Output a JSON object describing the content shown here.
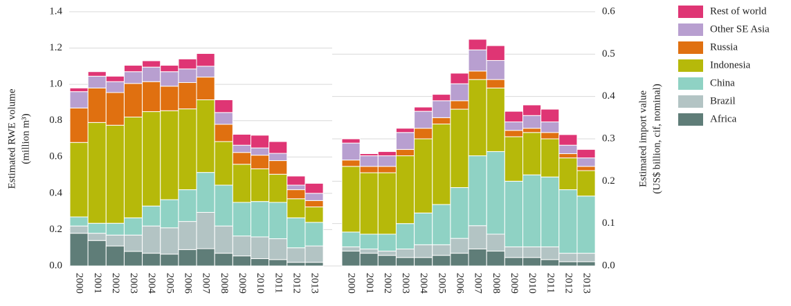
{
  "chart_data": {
    "type": "stacked-bar",
    "ylabel": [
      "Estimated RWE volume",
      "(million m³)"
    ],
    "y2label": [
      "Estimated import value",
      "(US$ billion, cif, nominal)"
    ],
    "categories": [
      "2000",
      "2001",
      "2002",
      "2003",
      "2004",
      "2005",
      "2006",
      "2007",
      "2008",
      "2009",
      "2010",
      "2011",
      "2012",
      "2013"
    ],
    "ylim": [
      0,
      1.4
    ],
    "yticks": [
      {
        "value": 0,
        "label": "0.0"
      },
      0.2,
      0.4,
      0.6,
      0.8,
      {
        "value": 1,
        "label": "1.0"
      },
      1.2,
      1.4
    ],
    "y2lim": [
      0,
      0.6
    ],
    "y2ticks": [
      {
        "value": 0,
        "label": "0.0"
      },
      0.1,
      0.2,
      0.3,
      0.4,
      0.5,
      0.6
    ],
    "grid": true,
    "series": [
      {
        "name": "Africa",
        "color": "#5f7d78",
        "values": [
          0.18,
          0.14,
          0.11,
          0.08,
          0.07,
          0.065,
          0.09,
          0.095,
          0.07,
          0.055,
          0.04,
          0.035,
          0.02,
          0.02
        ],
        "y2_values": [
          0.035,
          0.03,
          0.025,
          0.02,
          0.02,
          0.025,
          0.03,
          0.04,
          0.035,
          0.02,
          0.02,
          0.015,
          0.01,
          0.01
        ]
      },
      {
        "name": "Brazil",
        "color": "#b3c4c4",
        "values": [
          0.04,
          0.04,
          0.06,
          0.09,
          0.15,
          0.145,
          0.155,
          0.2,
          0.15,
          0.11,
          0.12,
          0.115,
          0.08,
          0.09
        ],
        "y2_values": [
          0.01,
          0.01,
          0.01,
          0.02,
          0.03,
          0.025,
          0.035,
          0.055,
          0.04,
          0.025,
          0.025,
          0.03,
          0.02,
          0.02
        ]
      },
      {
        "name": "China",
        "color": "#8fd2c4",
        "values": [
          0.05,
          0.055,
          0.065,
          0.095,
          0.11,
          0.155,
          0.175,
          0.22,
          0.225,
          0.185,
          0.195,
          0.2,
          0.165,
          0.13
        ],
        "y2_values": [
          0.035,
          0.035,
          0.04,
          0.06,
          0.075,
          0.095,
          0.12,
          0.165,
          0.195,
          0.155,
          0.17,
          0.165,
          0.15,
          0.135
        ]
      },
      {
        "name": "Indonesia",
        "color": "#b6b90a",
        "values": [
          0.41,
          0.555,
          0.54,
          0.555,
          0.52,
          0.49,
          0.445,
          0.4,
          0.24,
          0.21,
          0.18,
          0.155,
          0.105,
          0.085
        ],
        "y2_values": [
          0.155,
          0.145,
          0.145,
          0.16,
          0.175,
          0.19,
          0.185,
          0.18,
          0.15,
          0.105,
          0.1,
          0.09,
          0.075,
          0.06
        ]
      },
      {
        "name": "Russia",
        "color": "#e07010",
        "values": [
          0.19,
          0.19,
          0.18,
          0.185,
          0.165,
          0.135,
          0.145,
          0.125,
          0.095,
          0.065,
          0.075,
          0.075,
          0.05,
          0.035
        ],
        "y2_values": [
          0.015,
          0.015,
          0.015,
          0.015,
          0.025,
          0.015,
          0.02,
          0.02,
          0.02,
          0.015,
          0.01,
          0.015,
          0.01,
          0.01
        ]
      },
      {
        "name": "Other SE Asia",
        "color": "#b89fd0",
        "values": [
          0.09,
          0.065,
          0.06,
          0.065,
          0.08,
          0.08,
          0.075,
          0.06,
          0.065,
          0.04,
          0.04,
          0.04,
          0.025,
          0.04
        ],
        "y2_values": [
          0.04,
          0.025,
          0.025,
          0.04,
          0.04,
          0.04,
          0.04,
          0.05,
          0.045,
          0.02,
          0.03,
          0.025,
          0.02,
          0.02
        ]
      },
      {
        "name": "Rest of world",
        "color": "#df3574",
        "values": [
          0.02,
          0.025,
          0.03,
          0.035,
          0.035,
          0.035,
          0.055,
          0.07,
          0.07,
          0.06,
          0.07,
          0.065,
          0.05,
          0.055
        ],
        "y2_values": [
          0.01,
          0.005,
          0.01,
          0.01,
          0.01,
          0.015,
          0.025,
          0.025,
          0.035,
          0.025,
          0.025,
          0.03,
          0.025,
          0.02
        ]
      }
    ]
  }
}
